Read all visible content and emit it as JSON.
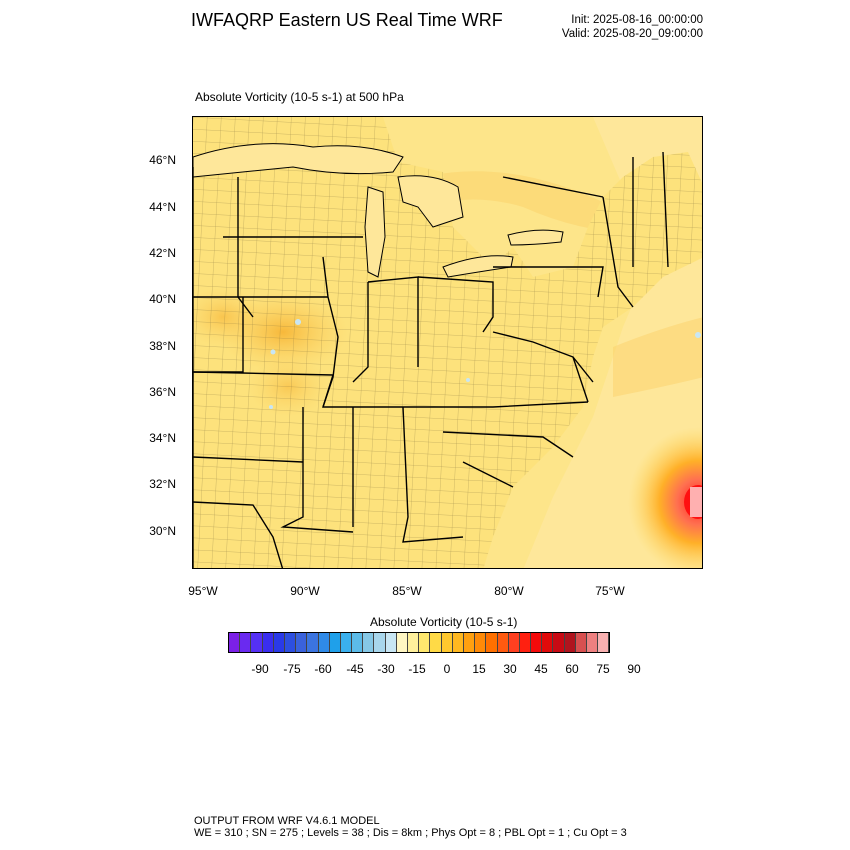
{
  "header": {
    "title": "IWFAQRP Eastern US Real Time WRF",
    "init": "Init: 2025-08-16_00:00:00",
    "valid": "Valid: 2025-08-20_09:00:00"
  },
  "plot": {
    "variable_title": "Absolute Vorticity   (10-5 s-1)     at   500 hPa",
    "lat_labels": [
      "46°N",
      "44°N",
      "42°N",
      "40°N",
      "38°N",
      "36°N",
      "34°N",
      "32°N",
      "30°N"
    ],
    "lon_labels": [
      "95°W",
      "90°W",
      "85°W",
      "80°W",
      "75°W"
    ]
  },
  "colorbar": {
    "title": "Absolute Vorticity  (10-5 s-1)",
    "labels": [
      "-90",
      "-75",
      "-60",
      "-45",
      "-30",
      "-15",
      "0",
      "15",
      "30",
      "45",
      "60",
      "75",
      "90"
    ],
    "colors": [
      "#7b20e6",
      "#6a2af0",
      "#5530f5",
      "#3a2ef0",
      "#2a3ae8",
      "#2d4fe0",
      "#3a62dc",
      "#3b74e0",
      "#2f8ae8",
      "#1fa0ea",
      "#3ab0ee",
      "#5cbbe8",
      "#86c8e6",
      "#a8d6ec",
      "#c8e6f4",
      "#fff6c2",
      "#fff09c",
      "#ffe86e",
      "#ffda46",
      "#ffc82e",
      "#ffb820",
      "#ffa010",
      "#ff8a08",
      "#ff7000",
      "#ff5a10",
      "#ff4020",
      "#ff2010",
      "#f40a0a",
      "#e00a0a",
      "#c80a14",
      "#b0141e",
      "#d85050",
      "#ee8080",
      "#f8b0b0"
    ]
  },
  "footer": {
    "line1": "OUTPUT FROM WRF V4.6.1 MODEL",
    "line2": "WE = 310 ; SN = 275 ; Levels = 38 ; Dis = 8km ; Phys Opt = 8 ; PBL Opt = 1 ; Cu Opt = 3"
  }
}
